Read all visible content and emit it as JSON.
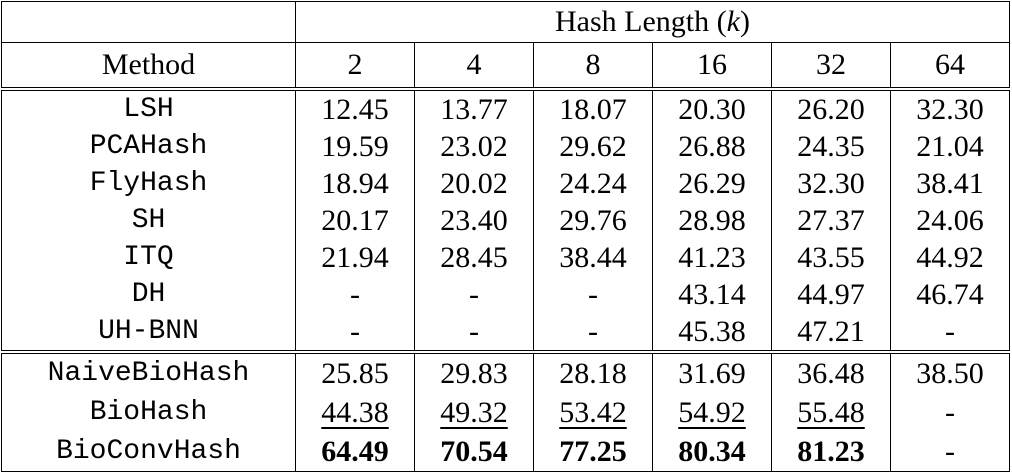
{
  "header": {
    "group_label": "Hash Length (",
    "group_var": "k",
    "group_close": ")",
    "method_label": "Method",
    "hash_lengths": [
      "2",
      "4",
      "8",
      "16",
      "32",
      "64"
    ]
  },
  "rows": [
    {
      "method": "LSH",
      "values": [
        "12.45",
        "13.77",
        "18.07",
        "20.30",
        "26.20",
        "32.30"
      ],
      "style": ""
    },
    {
      "method": "PCAHash",
      "values": [
        "19.59",
        "23.02",
        "29.62",
        "26.88",
        "24.35",
        "21.04"
      ],
      "style": ""
    },
    {
      "method": "FlyHash",
      "values": [
        "18.94",
        "20.02",
        "24.24",
        "26.29",
        "32.30",
        "38.41"
      ],
      "style": ""
    },
    {
      "method": "SH",
      "values": [
        "20.17",
        "23.40",
        "29.76",
        "28.98",
        "27.37",
        "24.06"
      ],
      "style": ""
    },
    {
      "method": "ITQ",
      "values": [
        "21.94",
        "28.45",
        "38.44",
        "41.23",
        "43.55",
        "44.92"
      ],
      "style": ""
    },
    {
      "method": "DH",
      "values": [
        "-",
        "-",
        "-",
        "43.14",
        "44.97",
        "46.74"
      ],
      "style": ""
    },
    {
      "method": "UH-BNN",
      "values": [
        "-",
        "-",
        "-",
        "45.38",
        "47.21",
        "-"
      ],
      "style": ""
    },
    {
      "method": "NaiveBioHash",
      "values": [
        "25.85",
        "29.83",
        "28.18",
        "31.69",
        "36.48",
        "38.50"
      ],
      "style": ""
    },
    {
      "method": "BioHash",
      "values": [
        "44.38",
        "49.32",
        "53.42",
        "54.92",
        "55.48",
        "-"
      ],
      "style": "underline"
    },
    {
      "method": "BioConvHash",
      "values": [
        "64.49",
        "70.54",
        "77.25",
        "80.34",
        "81.23",
        "-"
      ],
      "style": "bold"
    }
  ]
}
